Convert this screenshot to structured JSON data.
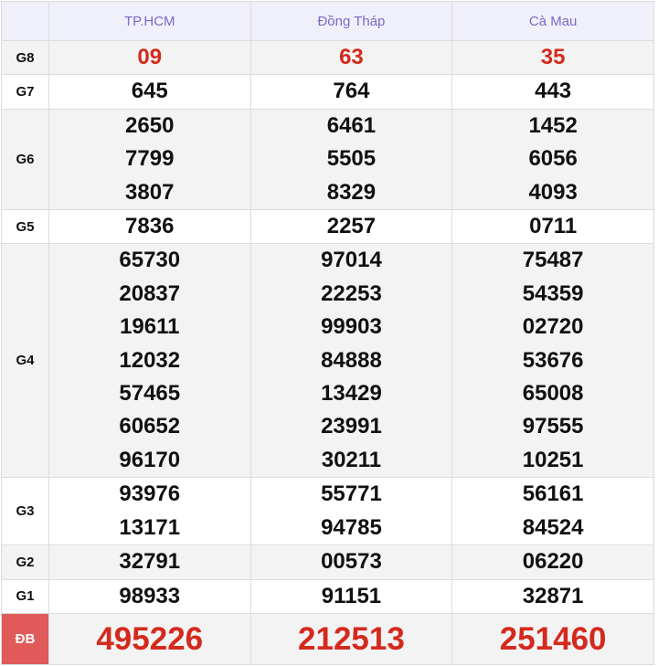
{
  "header": {
    "provinces": [
      "TP.HCM",
      "Đồng Tháp",
      "Cà Mau"
    ]
  },
  "rows": [
    {
      "label": "G8",
      "values": [
        [
          "09"
        ],
        [
          "63"
        ],
        [
          "35"
        ]
      ]
    },
    {
      "label": "G7",
      "values": [
        [
          "645"
        ],
        [
          "764"
        ],
        [
          "443"
        ]
      ]
    },
    {
      "label": "G6",
      "values": [
        [
          "2650",
          "7799",
          "3807"
        ],
        [
          "6461",
          "5505",
          "8329"
        ],
        [
          "1452",
          "6056",
          "4093"
        ]
      ]
    },
    {
      "label": "G5",
      "values": [
        [
          "7836"
        ],
        [
          "2257"
        ],
        [
          "0711"
        ]
      ]
    },
    {
      "label": "G4",
      "values": [
        [
          "65730",
          "20837",
          "19611",
          "12032",
          "57465",
          "60652",
          "96170"
        ],
        [
          "97014",
          "22253",
          "99903",
          "84888",
          "13429",
          "23991",
          "30211"
        ],
        [
          "75487",
          "54359",
          "02720",
          "53676",
          "65008",
          "97555",
          "10251"
        ]
      ]
    },
    {
      "label": "G3",
      "values": [
        [
          "93976",
          "13171"
        ],
        [
          "55771",
          "94785"
        ],
        [
          "56161",
          "84524"
        ]
      ]
    },
    {
      "label": "G2",
      "values": [
        [
          "32791"
        ],
        [
          "00573"
        ],
        [
          "06220"
        ]
      ]
    },
    {
      "label": "G1",
      "values": [
        [
          "98933"
        ],
        [
          "91151"
        ],
        [
          "32871"
        ]
      ]
    },
    {
      "label": "ĐB",
      "values": [
        [
          "495226"
        ],
        [
          "212513"
        ],
        [
          "251460"
        ]
      ]
    }
  ],
  "colors": {
    "header_text": "#7b68c8",
    "prize_red": "#d42a1e",
    "db_label_bg": "#e05a5a"
  }
}
